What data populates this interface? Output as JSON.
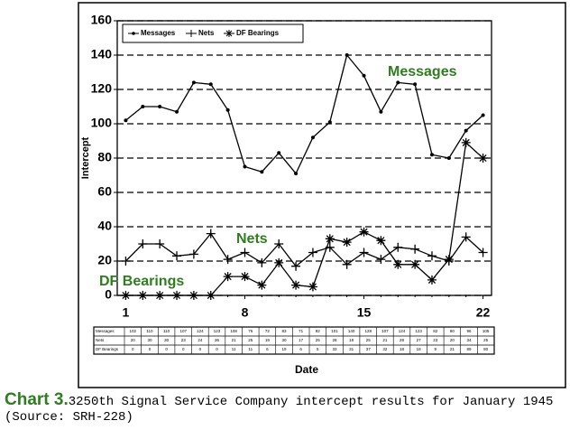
{
  "chart_data": {
    "type": "line",
    "y_label": "Intercept",
    "x_label": "Date",
    "x": [
      1,
      2,
      3,
      4,
      5,
      6,
      7,
      8,
      9,
      10,
      11,
      12,
      13,
      14,
      15,
      16,
      17,
      18,
      19,
      20,
      21,
      22
    ],
    "xlim": [
      0.5,
      22.5
    ],
    "xticks": [
      1,
      8,
      15,
      22
    ],
    "ylim": [
      0,
      160
    ],
    "yticks": [
      0,
      20,
      40,
      60,
      80,
      100,
      120,
      140,
      160
    ],
    "grid": true,
    "legend": "top-left",
    "series": [
      {
        "name": "Messages",
        "color": "#000000",
        "marker": "dot",
        "values": [
          102,
          110,
          110,
          107,
          124,
          123,
          108,
          75,
          72,
          83,
          71,
          92,
          101,
          140,
          128,
          107,
          124,
          123,
          82,
          80,
          96,
          105
        ]
      },
      {
        "name": "Nets",
        "color": "#000000",
        "marker": "plus",
        "values": [
          20,
          30,
          30,
          23,
          24,
          36,
          21,
          25,
          19,
          30,
          17,
          25,
          28,
          18,
          25,
          21,
          28,
          27,
          23,
          20,
          34,
          25
        ]
      },
      {
        "name": "DF Bearings",
        "color": "#000000",
        "marker": "asterisk",
        "values": [
          0,
          0,
          0,
          0,
          0,
          0,
          11,
          11,
          6,
          19,
          6,
          5,
          33,
          31,
          37,
          32,
          18,
          18,
          9,
          21,
          89,
          80
        ]
      }
    ],
    "annotations": [
      {
        "text": "Messages",
        "color": "#2e7d1f"
      },
      {
        "text": "Nets",
        "color": "#2e7d1f"
      },
      {
        "text": "DF Bearings",
        "color": "#2e7d1f"
      }
    ]
  },
  "caption": {
    "label": "Chart 3.",
    "text": "3250th Signal Service Company intercept results for January 1945 (Source: SRH-228)",
    "color": "#2e7d1f"
  }
}
